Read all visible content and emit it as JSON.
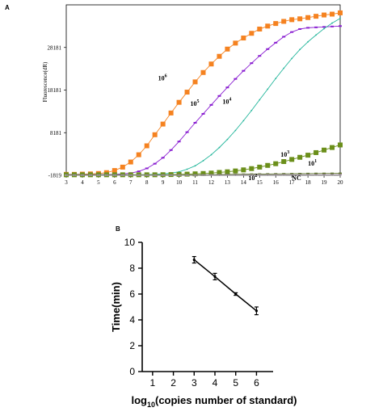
{
  "chart_data": [
    {
      "panel": "A",
      "type": "line",
      "ylabel": "Fluorescence(dR)",
      "xlim": [
        3,
        20
      ],
      "ylim": [
        -1819,
        38181
      ],
      "xticks": [
        3,
        4,
        5,
        6,
        7,
        8,
        9,
        10,
        11,
        12,
        13,
        14,
        15,
        16,
        17,
        18,
        19,
        20
      ],
      "yticks": [
        -1819,
        8181,
        18181,
        28181
      ],
      "x": [
        3,
        3.5,
        4,
        4.5,
        5,
        5.5,
        6,
        6.5,
        7,
        7.5,
        8,
        8.5,
        9,
        9.5,
        10,
        10.5,
        11,
        11.5,
        12,
        12.5,
        13,
        13.5,
        14,
        14.5,
        15,
        15.5,
        16,
        16.5,
        17,
        17.5,
        18,
        18.5,
        19,
        19.5,
        20
      ],
      "series": [
        {
          "name": "10⁶",
          "color": "#f58220",
          "marker": "square",
          "values": [
            -1600,
            -1600,
            -1550,
            -1500,
            -1400,
            -1200,
            -700,
            100,
            1300,
            3000,
            5100,
            7700,
            10200,
            12800,
            15300,
            17700,
            20100,
            22300,
            24300,
            26100,
            27800,
            29200,
            30400,
            31500,
            32500,
            33200,
            33800,
            34300,
            34700,
            34900,
            35200,
            35500,
            35800,
            36000,
            36300
          ]
        },
        {
          "name": "10⁵",
          "color": "#8a1fd1",
          "marker": "dash",
          "values": [
            -1650,
            -1650,
            -1650,
            -1650,
            -1650,
            -1650,
            -1600,
            -1500,
            -1300,
            -900,
            -200,
            900,
            2300,
            4100,
            6100,
            8300,
            10500,
            12600,
            14700,
            16800,
            18800,
            20800,
            22700,
            24500,
            26200,
            27800,
            29300,
            30700,
            31800,
            32500,
            32800,
            32900,
            33000,
            33100,
            33200
          ]
        },
        {
          "name": "10⁴",
          "color": "#20b59a",
          "marker": "dot",
          "values": [
            -1700,
            -1700,
            -1700,
            -1700,
            -1700,
            -1700,
            -1700,
            -1700,
            -1700,
            -1700,
            -1650,
            -1600,
            -1500,
            -1300,
            -1000,
            -400,
            400,
            1600,
            3000,
            4700,
            6600,
            8700,
            11000,
            13400,
            15900,
            18400,
            20900,
            23300,
            25600,
            27700,
            29500,
            31100,
            32600,
            33900,
            35000
          ]
        },
        {
          "name": "10³",
          "color": "#6b8f1a",
          "marker": "square",
          "values": [
            -1700,
            -1700,
            -1700,
            -1700,
            -1700,
            -1700,
            -1700,
            -1700,
            -1700,
            -1700,
            -1700,
            -1700,
            -1680,
            -1650,
            -1600,
            -1550,
            -1480,
            -1400,
            -1300,
            -1150,
            -1000,
            -800,
            -550,
            -250,
            100,
            500,
            900,
            1400,
            1900,
            2400,
            2900,
            3500,
            4100,
            4700,
            5300
          ]
        },
        {
          "name": "10¹",
          "color": "#5a6f2a",
          "marker": "dash",
          "values": [
            -1750,
            -1750,
            -1750,
            -1750,
            -1750,
            -1750,
            -1750,
            -1750,
            -1750,
            -1750,
            -1750,
            -1750,
            -1750,
            -1750,
            -1740,
            -1730,
            -1720,
            -1700,
            -1680,
            -1650,
            -1620,
            -1600,
            -1580,
            -1560,
            -1540,
            -1520,
            -1500,
            -1480,
            -1460,
            -1440,
            -1420,
            -1400,
            -1390,
            -1380,
            -1370
          ]
        },
        {
          "name": "10²",
          "color": "#b8a0b8",
          "marker": "dash",
          "values": [
            -1780,
            -1780,
            -1780,
            -1780,
            -1780,
            -1780,
            -1780,
            -1780,
            -1780,
            -1780,
            -1780,
            -1780,
            -1780,
            -1780,
            -1780,
            -1780,
            -1780,
            -1775,
            -1770,
            -1765,
            -1760,
            -1755,
            -1750,
            -1745,
            -1740,
            -1735,
            -1730,
            -1725,
            -1720,
            -1715,
            -1710,
            -1705,
            -1700,
            -1695,
            -1690
          ]
        },
        {
          "name": "NC",
          "color": "#888888",
          "marker": "dot",
          "values": [
            -1800,
            -1800,
            -1800,
            -1800,
            -1800,
            -1800,
            -1800,
            -1800,
            -1800,
            -1800,
            -1800,
            -1800,
            -1800,
            -1800,
            -1800,
            -1800,
            -1800,
            -1800,
            -1800,
            -1800,
            -1800,
            -1800,
            -1800,
            -1800,
            -1800,
            -1800,
            -1800,
            -1800,
            -1800,
            -1800,
            -1800,
            -1800,
            -1800,
            -1800,
            -1800
          ]
        }
      ],
      "annotations": [
        {
          "text_main": "10",
          "text_sup": "6",
          "x": 8.7,
          "y": 20500
        },
        {
          "text_main": "10",
          "text_sup": "5",
          "x": 10.7,
          "y": 14500
        },
        {
          "text_main": "10",
          "text_sup": "4",
          "x": 12.7,
          "y": 15000
        },
        {
          "text_main": "10",
          "text_sup": "3",
          "x": 16.3,
          "y": 2500
        },
        {
          "text_main": "10",
          "text_sup": "1",
          "x": 18.0,
          "y": 500
        },
        {
          "text_main": "10",
          "text_sup": "2",
          "x": 14.3,
          "y": -3000
        },
        {
          "text_main": "NC",
          "text_sup": "",
          "x": 17.0,
          "y": -3000
        }
      ]
    },
    {
      "panel": "B",
      "type": "line",
      "xlabel_main": "log",
      "xlabel_sub": "10",
      "xlabel_rest": "(copies number of standard)",
      "ylabel": "Time(min)",
      "xlim": [
        0.5,
        6.8
      ],
      "ylim": [
        0,
        10
      ],
      "xticks": [
        1,
        2,
        3,
        4,
        5,
        6
      ],
      "yticks": [
        0,
        2,
        4,
        6,
        8,
        10
      ],
      "x": [
        3,
        4,
        5,
        6
      ],
      "values": [
        8.65,
        7.35,
        6.0,
        4.7
      ],
      "errors": [
        0.25,
        0.25,
        0.1,
        0.3
      ]
    }
  ]
}
